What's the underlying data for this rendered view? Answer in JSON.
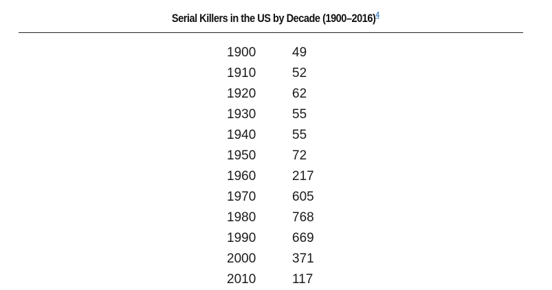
{
  "table": {
    "title": "Serial Killers in the US by Decade (1900–2016)",
    "footnote": "4",
    "rows": [
      {
        "decade": "1900",
        "count": "49"
      },
      {
        "decade": "1910",
        "count": "52"
      },
      {
        "decade": "1920",
        "count": "62"
      },
      {
        "decade": "1930",
        "count": "55"
      },
      {
        "decade": "1940",
        "count": "55"
      },
      {
        "decade": "1950",
        "count": "72"
      },
      {
        "decade": "1960",
        "count": "217"
      },
      {
        "decade": "1970",
        "count": "605"
      },
      {
        "decade": "1980",
        "count": "768"
      },
      {
        "decade": "1990",
        "count": "669"
      },
      {
        "decade": "2000",
        "count": "371"
      },
      {
        "decade": "2010",
        "count": "117"
      }
    ]
  },
  "colors": {
    "link": "#4a86c5",
    "text": "#1a1a1a",
    "rule": "#222222"
  }
}
